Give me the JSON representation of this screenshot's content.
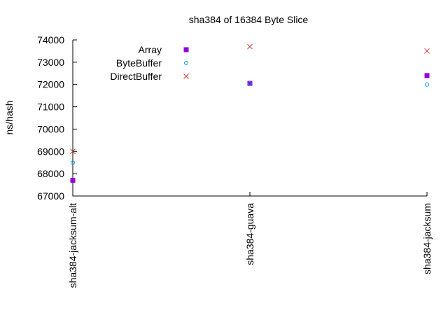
{
  "chart_data": {
    "type": "scatter",
    "title": "sha384 of 16384 Byte Slice",
    "xlabel": "",
    "ylabel": "ns/hash",
    "categories": [
      "sha384-jacksum-alt",
      "sha384-guava",
      "sha384-jacksum"
    ],
    "ylim": [
      67000,
      74000
    ],
    "yticks": [
      "67000",
      "68000",
      "69000",
      "70000",
      "71000",
      "72000",
      "73000",
      "74000"
    ],
    "grid": false,
    "legend_position": "top-left",
    "series": [
      {
        "name": "Array",
        "values": [
          67700,
          72050,
          72400
        ],
        "color": "#9400d3",
        "marker": "filled-square"
      },
      {
        "name": "ByteBuffer",
        "values": [
          68500,
          72050,
          72000
        ],
        "color": "#009ee0",
        "marker": "open-circle"
      },
      {
        "name": "DirectBuffer",
        "values": [
          69000,
          73700,
          73500
        ],
        "color": "#c0392b",
        "marker": "cross"
      }
    ]
  }
}
